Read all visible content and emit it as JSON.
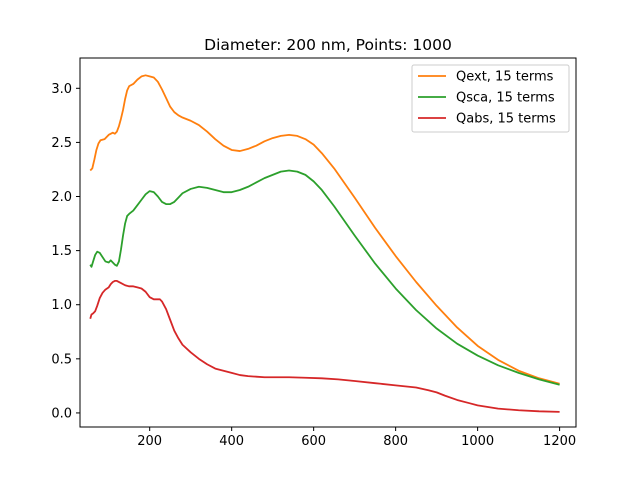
{
  "chart_data": {
    "type": "line",
    "title": "Diameter: 200 nm, Points: 1000",
    "xlabel": "",
    "ylabel": "",
    "xlim": [
      30,
      1240
    ],
    "ylim": [
      -0.13,
      3.28
    ],
    "xticks": [
      200,
      400,
      600,
      800,
      1000,
      1200
    ],
    "yticks": [
      0.0,
      0.5,
      1.0,
      1.5,
      2.0,
      2.5,
      3.0
    ],
    "xtick_labels": [
      "200",
      "400",
      "600",
      "800",
      "1000",
      "1200"
    ],
    "ytick_labels": [
      "0.0",
      "0.5",
      "1.0",
      "1.5",
      "2.0",
      "2.5",
      "3.0"
    ],
    "grid": false,
    "legend_position": "top-right",
    "series": [
      {
        "name": "Qext, 15 terms",
        "color": "#ff7f0e",
        "points": [
          [
            55,
            2.24
          ],
          [
            60,
            2.26
          ],
          [
            65,
            2.34
          ],
          [
            70,
            2.43
          ],
          [
            75,
            2.49
          ],
          [
            80,
            2.52
          ],
          [
            90,
            2.53
          ],
          [
            100,
            2.57
          ],
          [
            110,
            2.59
          ],
          [
            115,
            2.58
          ],
          [
            120,
            2.6
          ],
          [
            125,
            2.65
          ],
          [
            130,
            2.72
          ],
          [
            135,
            2.8
          ],
          [
            140,
            2.9
          ],
          [
            145,
            2.98
          ],
          [
            150,
            3.02
          ],
          [
            160,
            3.04
          ],
          [
            170,
            3.08
          ],
          [
            180,
            3.11
          ],
          [
            190,
            3.12
          ],
          [
            200,
            3.11
          ],
          [
            210,
            3.1
          ],
          [
            220,
            3.06
          ],
          [
            230,
            2.99
          ],
          [
            240,
            2.91
          ],
          [
            250,
            2.83
          ],
          [
            260,
            2.78
          ],
          [
            270,
            2.75
          ],
          [
            280,
            2.73
          ],
          [
            300,
            2.7
          ],
          [
            320,
            2.66
          ],
          [
            340,
            2.6
          ],
          [
            360,
            2.53
          ],
          [
            380,
            2.47
          ],
          [
            400,
            2.43
          ],
          [
            420,
            2.42
          ],
          [
            440,
            2.44
          ],
          [
            460,
            2.47
          ],
          [
            480,
            2.51
          ],
          [
            500,
            2.54
          ],
          [
            520,
            2.56
          ],
          [
            540,
            2.57
          ],
          [
            560,
            2.56
          ],
          [
            580,
            2.53
          ],
          [
            600,
            2.48
          ],
          [
            620,
            2.4
          ],
          [
            650,
            2.26
          ],
          [
            700,
            1.99
          ],
          [
            750,
            1.71
          ],
          [
            800,
            1.45
          ],
          [
            850,
            1.21
          ],
          [
            900,
            0.99
          ],
          [
            950,
            0.79
          ],
          [
            1000,
            0.62
          ],
          [
            1050,
            0.49
          ],
          [
            1100,
            0.39
          ],
          [
            1150,
            0.32
          ],
          [
            1200,
            0.27
          ]
        ]
      },
      {
        "name": "Qsca, 15 terms",
        "color": "#2ca02c",
        "points": [
          [
            55,
            1.37
          ],
          [
            58,
            1.35
          ],
          [
            62,
            1.4
          ],
          [
            67,
            1.46
          ],
          [
            72,
            1.49
          ],
          [
            78,
            1.48
          ],
          [
            85,
            1.44
          ],
          [
            92,
            1.4
          ],
          [
            100,
            1.39
          ],
          [
            105,
            1.41
          ],
          [
            110,
            1.39
          ],
          [
            115,
            1.37
          ],
          [
            120,
            1.36
          ],
          [
            125,
            1.4
          ],
          [
            130,
            1.51
          ],
          [
            135,
            1.64
          ],
          [
            140,
            1.75
          ],
          [
            145,
            1.82
          ],
          [
            150,
            1.84
          ],
          [
            160,
            1.87
          ],
          [
            170,
            1.92
          ],
          [
            180,
            1.97
          ],
          [
            190,
            2.02
          ],
          [
            200,
            2.05
          ],
          [
            210,
            2.04
          ],
          [
            220,
            2.0
          ],
          [
            230,
            1.95
          ],
          [
            240,
            1.93
          ],
          [
            250,
            1.93
          ],
          [
            260,
            1.95
          ],
          [
            270,
            1.99
          ],
          [
            280,
            2.03
          ],
          [
            300,
            2.07
          ],
          [
            320,
            2.09
          ],
          [
            340,
            2.08
          ],
          [
            360,
            2.06
          ],
          [
            380,
            2.04
          ],
          [
            400,
            2.04
          ],
          [
            420,
            2.06
          ],
          [
            440,
            2.09
          ],
          [
            460,
            2.13
          ],
          [
            480,
            2.17
          ],
          [
            500,
            2.2
          ],
          [
            520,
            2.23
          ],
          [
            540,
            2.24
          ],
          [
            560,
            2.23
          ],
          [
            580,
            2.2
          ],
          [
            600,
            2.14
          ],
          [
            620,
            2.06
          ],
          [
            650,
            1.91
          ],
          [
            700,
            1.64
          ],
          [
            750,
            1.38
          ],
          [
            800,
            1.15
          ],
          [
            850,
            0.95
          ],
          [
            900,
            0.78
          ],
          [
            950,
            0.64
          ],
          [
            1000,
            0.53
          ],
          [
            1050,
            0.44
          ],
          [
            1100,
            0.37
          ],
          [
            1150,
            0.31
          ],
          [
            1200,
            0.26
          ]
        ]
      },
      {
        "name": "Qabs, 15 terms",
        "color": "#d62728",
        "points": [
          [
            55,
            0.87
          ],
          [
            58,
            0.91
          ],
          [
            62,
            0.92
          ],
          [
            67,
            0.94
          ],
          [
            72,
            0.99
          ],
          [
            78,
            1.06
          ],
          [
            85,
            1.11
          ],
          [
            92,
            1.14
          ],
          [
            100,
            1.16
          ],
          [
            105,
            1.19
          ],
          [
            110,
            1.21
          ],
          [
            115,
            1.22
          ],
          [
            120,
            1.22
          ],
          [
            130,
            1.2
          ],
          [
            140,
            1.18
          ],
          [
            150,
            1.17
          ],
          [
            160,
            1.17
          ],
          [
            170,
            1.16
          ],
          [
            180,
            1.15
          ],
          [
            190,
            1.12
          ],
          [
            200,
            1.07
          ],
          [
            210,
            1.05
          ],
          [
            220,
            1.05
          ],
          [
            225,
            1.05
          ],
          [
            230,
            1.03
          ],
          [
            240,
            0.96
          ],
          [
            250,
            0.86
          ],
          [
            260,
            0.76
          ],
          [
            270,
            0.69
          ],
          [
            280,
            0.63
          ],
          [
            300,
            0.56
          ],
          [
            320,
            0.5
          ],
          [
            340,
            0.45
          ],
          [
            360,
            0.41
          ],
          [
            380,
            0.39
          ],
          [
            400,
            0.37
          ],
          [
            420,
            0.35
          ],
          [
            440,
            0.34
          ],
          [
            460,
            0.335
          ],
          [
            480,
            0.33
          ],
          [
            500,
            0.33
          ],
          [
            540,
            0.33
          ],
          [
            580,
            0.325
          ],
          [
            620,
            0.32
          ],
          [
            660,
            0.31
          ],
          [
            700,
            0.295
          ],
          [
            750,
            0.275
          ],
          [
            800,
            0.255
          ],
          [
            850,
            0.235
          ],
          [
            880,
            0.21
          ],
          [
            900,
            0.19
          ],
          [
            920,
            0.16
          ],
          [
            950,
            0.12
          ],
          [
            980,
            0.09
          ],
          [
            1000,
            0.07
          ],
          [
            1050,
            0.04
          ],
          [
            1100,
            0.025
          ],
          [
            1150,
            0.015
          ],
          [
            1200,
            0.01
          ]
        ]
      }
    ]
  }
}
